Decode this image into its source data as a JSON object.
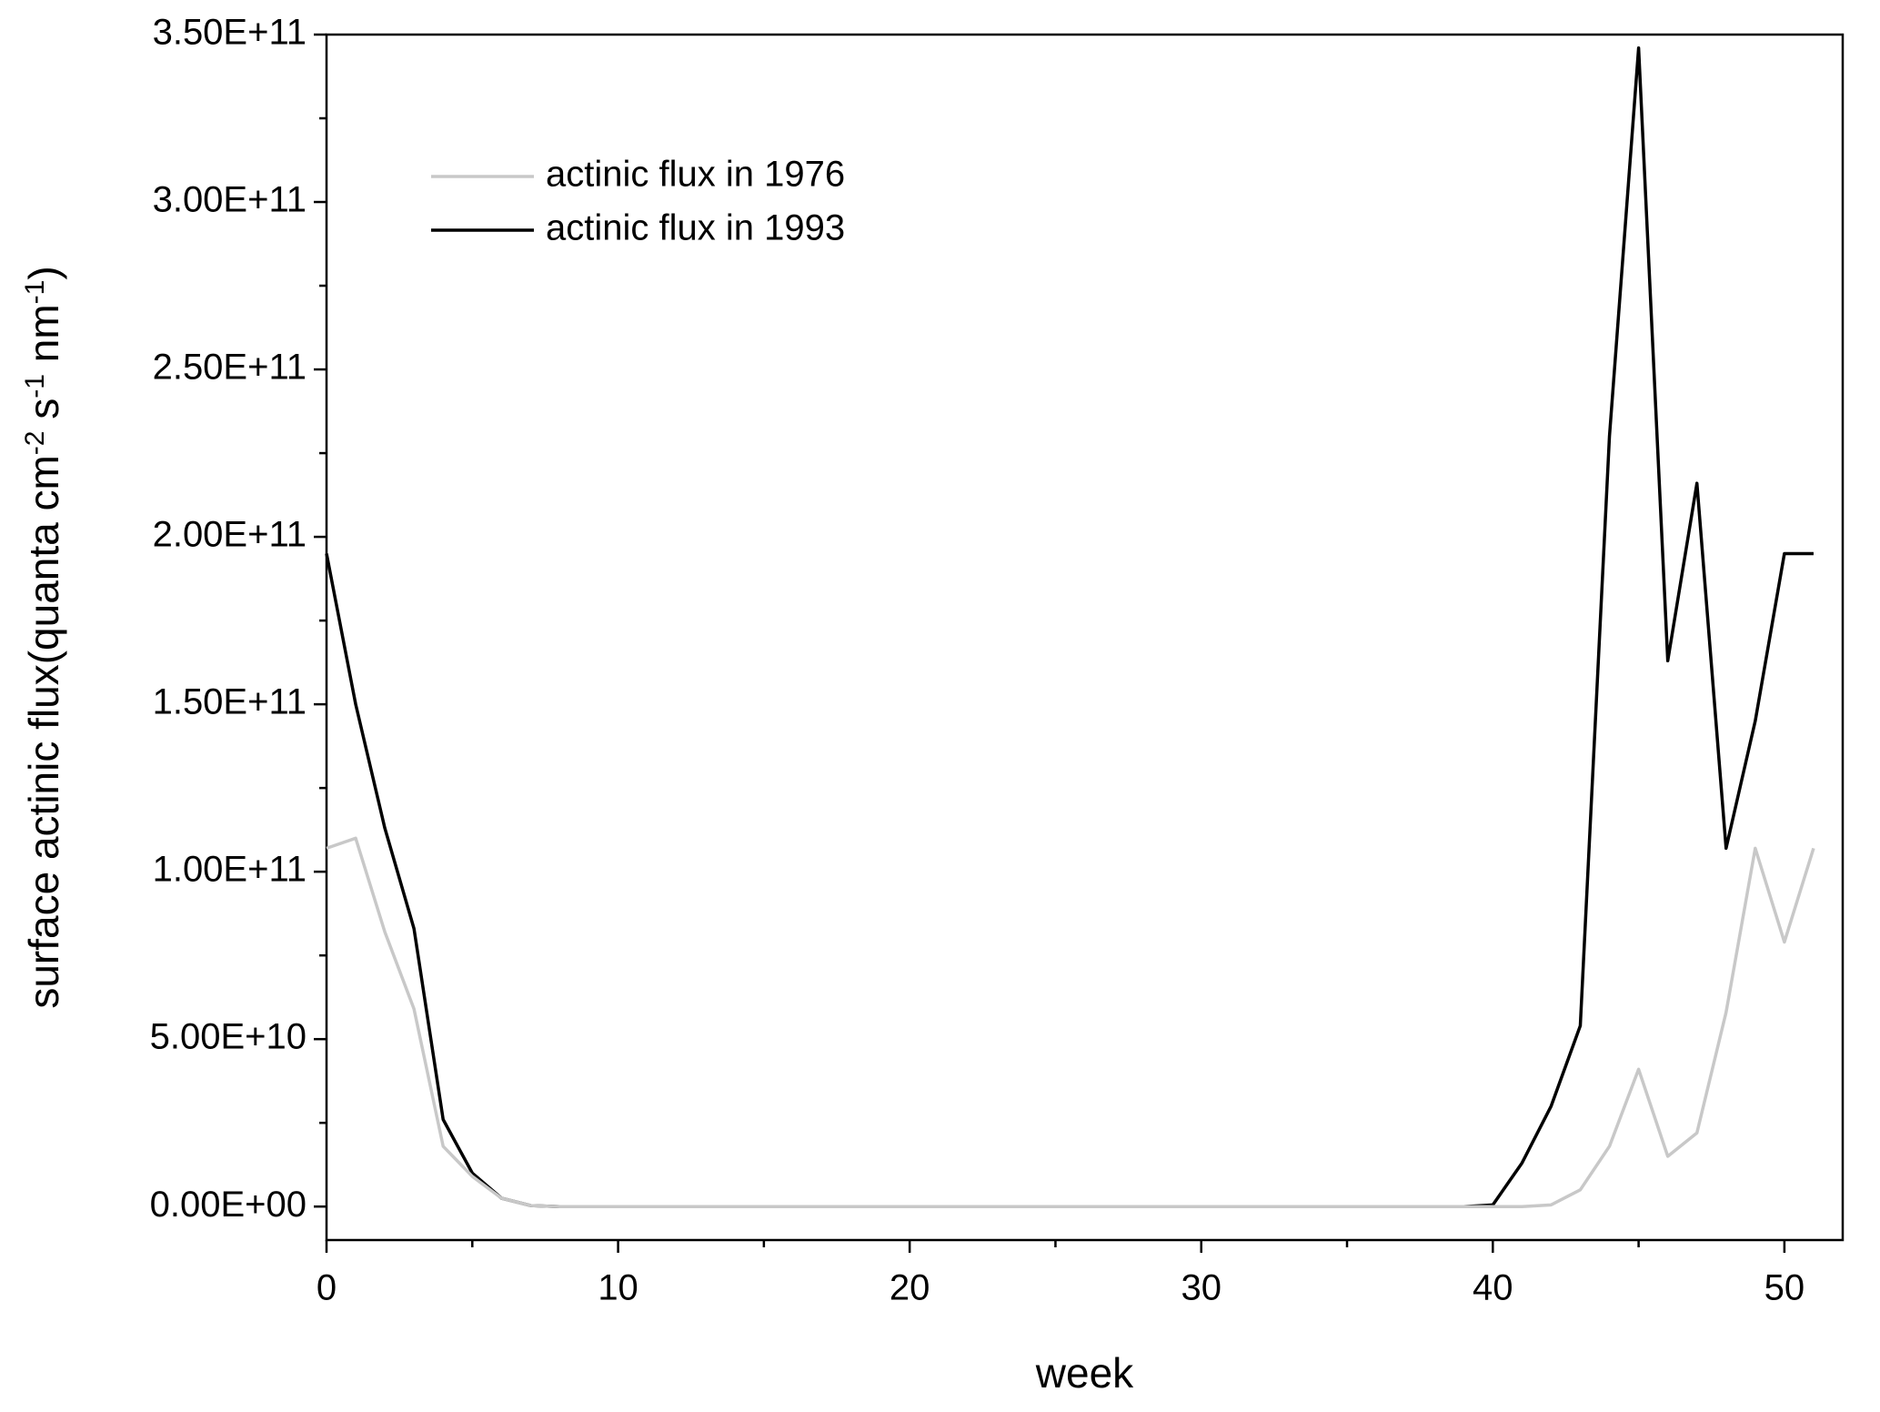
{
  "chart_data": {
    "type": "line",
    "xlabel": "week",
    "ylabel_parts": [
      "surface actinic flux(quanta cm",
      "-2",
      " s",
      "-1",
      " nm",
      "-1",
      ")"
    ],
    "x": [
      0,
      1,
      2,
      3,
      4,
      5,
      6,
      7,
      8,
      9,
      10,
      11,
      12,
      13,
      14,
      15,
      16,
      17,
      18,
      19,
      20,
      21,
      22,
      23,
      24,
      25,
      26,
      27,
      28,
      29,
      30,
      31,
      32,
      33,
      34,
      35,
      36,
      37,
      38,
      39,
      40,
      41,
      42,
      43,
      44,
      45,
      46,
      47,
      48,
      49,
      50,
      51
    ],
    "series": [
      {
        "name": "actinic flux in 1993",
        "color": "#000000",
        "values": [
          195000000000,
          150000000000,
          113000000000,
          83000000000,
          26000000000,
          10000000000,
          2500000000,
          300000000,
          0,
          0,
          0,
          0,
          0,
          0,
          0,
          0,
          0,
          0,
          0,
          0,
          0,
          0,
          0,
          0,
          0,
          0,
          0,
          0,
          0,
          0,
          0,
          0,
          0,
          0,
          0,
          0,
          0,
          0,
          0,
          0,
          500000000,
          13000000000,
          30000000000,
          54000000000,
          230000000000,
          346000000000,
          163000000000,
          216000000000,
          107000000000,
          145000000000,
          195000000000,
          195000000000
        ]
      },
      {
        "name": "actinic flux in 1976",
        "color": "#c8c8c8",
        "values": [
          107000000000,
          110000000000,
          82000000000,
          59000000000,
          18000000000,
          9000000000,
          2500000000,
          300000000,
          0,
          0,
          0,
          0,
          0,
          0,
          0,
          0,
          0,
          0,
          0,
          0,
          0,
          0,
          0,
          0,
          0,
          0,
          0,
          0,
          0,
          0,
          0,
          0,
          0,
          0,
          0,
          0,
          0,
          0,
          0,
          0,
          0,
          0,
          500000000,
          5000000000,
          18000000000,
          41000000000,
          15000000000,
          22000000000,
          58000000000,
          107000000000,
          79000000000,
          107000000000
        ]
      }
    ],
    "xlim": [
      0,
      52
    ],
    "xticks": [
      0,
      10,
      20,
      30,
      40,
      50
    ],
    "ylim": [
      -10000000000,
      350000000000
    ],
    "yticks": [
      {
        "value": 0,
        "label": "0.00E+00"
      },
      {
        "value": 50000000000,
        "label": "5.00E+10"
      },
      {
        "value": 100000000000,
        "label": "1.00E+11"
      },
      {
        "value": 150000000000,
        "label": "1.50E+11"
      },
      {
        "value": 200000000000,
        "label": "2.00E+11"
      },
      {
        "value": 250000000000,
        "label": "2.50E+11"
      },
      {
        "value": 300000000000,
        "label": "3.00E+11"
      },
      {
        "value": 350000000000,
        "label": "3.50E+11"
      }
    ],
    "legend": "upper-left",
    "grid": false
  }
}
